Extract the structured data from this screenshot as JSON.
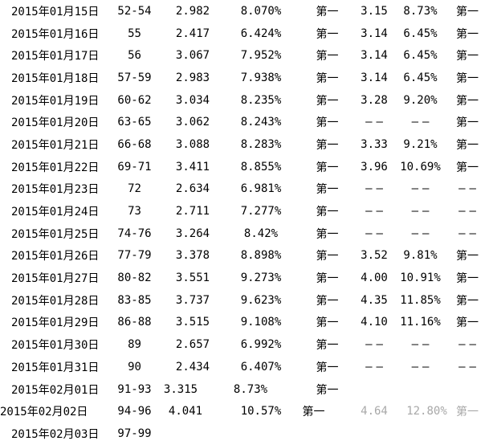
{
  "table": {
    "description_columns": [
      "date",
      "range",
      "value_a",
      "percent_a",
      "rank_a",
      "value_b",
      "percent_b",
      "rank_b"
    ],
    "empty_marker": "——",
    "rows": [
      {
        "date": "2015年01月15日",
        "range": "52-54",
        "value_a": "2.982",
        "percent_a": "8.070%",
        "rank_a": "第一",
        "value_b": "3.15",
        "percent_b": "8.73%",
        "rank_b": "第一"
      },
      {
        "date": "2015年01月16日",
        "range": "55",
        "value_a": "2.417",
        "percent_a": "6.424%",
        "rank_a": "第一",
        "value_b": "3.14",
        "percent_b": "6.45%",
        "rank_b": "第一"
      },
      {
        "date": "2015年01月17日",
        "range": "56",
        "value_a": "3.067",
        "percent_a": "7.952%",
        "rank_a": "第一",
        "value_b": "3.14",
        "percent_b": "6.45%",
        "rank_b": "第一"
      },
      {
        "date": "2015年01月18日",
        "range": "57-59",
        "value_a": "2.983",
        "percent_a": "7.938%",
        "rank_a": "第一",
        "value_b": "3.14",
        "percent_b": "6.45%",
        "rank_b": "第一"
      },
      {
        "date": "2015年01月19日",
        "range": "60-62",
        "value_a": "3.034",
        "percent_a": "8.235%",
        "rank_a": "第一",
        "value_b": "3.28",
        "percent_b": "9.20%",
        "rank_b": "第一"
      },
      {
        "date": "2015年01月20日",
        "range": "63-65",
        "value_a": "3.062",
        "percent_a": "8.243%",
        "rank_a": "第一",
        "value_b": "——",
        "percent_b": "——",
        "rank_b": "第一"
      },
      {
        "date": "2015年01月21日",
        "range": "66-68",
        "value_a": "3.088",
        "percent_a": "8.283%",
        "rank_a": "第一",
        "value_b": "3.33",
        "percent_b": "9.21%",
        "rank_b": "第一"
      },
      {
        "date": "2015年01月22日",
        "range": "69-71",
        "value_a": "3.411",
        "percent_a": "8.855%",
        "rank_a": "第一",
        "value_b": "3.96",
        "percent_b": "10.69%",
        "rank_b": "第一"
      },
      {
        "date": "2015年01月23日",
        "range": "72",
        "value_a": "2.634",
        "percent_a": "6.981%",
        "rank_a": "第一",
        "value_b": "——",
        "percent_b": "——",
        "rank_b": "——"
      },
      {
        "date": "2015年01月24日",
        "range": "73",
        "value_a": "2.711",
        "percent_a": "7.277%",
        "rank_a": "第一",
        "value_b": "——",
        "percent_b": "——",
        "rank_b": "——"
      },
      {
        "date": "2015年01月25日",
        "range": "74-76",
        "value_a": "3.264",
        "percent_a": "8.42%",
        "rank_a": "第一",
        "value_b": "——",
        "percent_b": "——",
        "rank_b": "——"
      },
      {
        "date": "2015年01月26日",
        "range": "77-79",
        "value_a": "3.378",
        "percent_a": "8.898%",
        "rank_a": "第一",
        "value_b": "3.52",
        "percent_b": "9.81%",
        "rank_b": "第一"
      },
      {
        "date": "2015年01月27日",
        "range": "80-82",
        "value_a": "3.551",
        "percent_a": "9.273%",
        "rank_a": "第一",
        "value_b": "4.00",
        "percent_b": "10.91%",
        "rank_b": "第一"
      },
      {
        "date": "2015年01月28日",
        "range": "83-85",
        "value_a": "3.737",
        "percent_a": "9.623%",
        "rank_a": "第一",
        "value_b": "4.35",
        "percent_b": "11.85%",
        "rank_b": "第一"
      },
      {
        "date": "2015年01月29日",
        "range": "86-88",
        "value_a": "3.515",
        "percent_a": "9.108%",
        "rank_a": "第一",
        "value_b": "4.10",
        "percent_b": "11.16%",
        "rank_b": "第一"
      },
      {
        "date": "2015年01月30日",
        "range": "89",
        "value_a": "2.657",
        "percent_a": "6.992%",
        "rank_a": "第一",
        "value_b": "——",
        "percent_b": "——",
        "rank_b": "——"
      },
      {
        "date": "2015年01月31日",
        "range": "90",
        "value_a": "2.434",
        "percent_a": "6.407%",
        "rank_a": "第一",
        "value_b": "——",
        "percent_b": "——",
        "rank_b": "——"
      },
      {
        "date": "2015年02月01日",
        "range": "91-93",
        "value_a": "3.315",
        "percent_a": "8.73%",
        "rank_a": "第一",
        "value_b": "",
        "percent_b": "",
        "rank_b": ""
      },
      {
        "date": "2015年02月02日",
        "range": "94-96",
        "value_a": "4.041",
        "percent_a": "10.57%",
        "rank_a": "第一",
        "value_b": "4.64",
        "percent_b": "12.80%",
        "rank_b": "第一",
        "faded": [
          "value_b",
          "percent_b",
          "rank_b"
        ]
      },
      {
        "date": "2015年02月03日",
        "range": "97-99",
        "value_a": "",
        "percent_a": "",
        "rank_a": "",
        "value_b": "",
        "percent_b": "",
        "rank_b": ""
      }
    ]
  },
  "colors": {
    "text": "#000000",
    "background": "#ffffff",
    "faded_text": "#a8a8a8"
  }
}
